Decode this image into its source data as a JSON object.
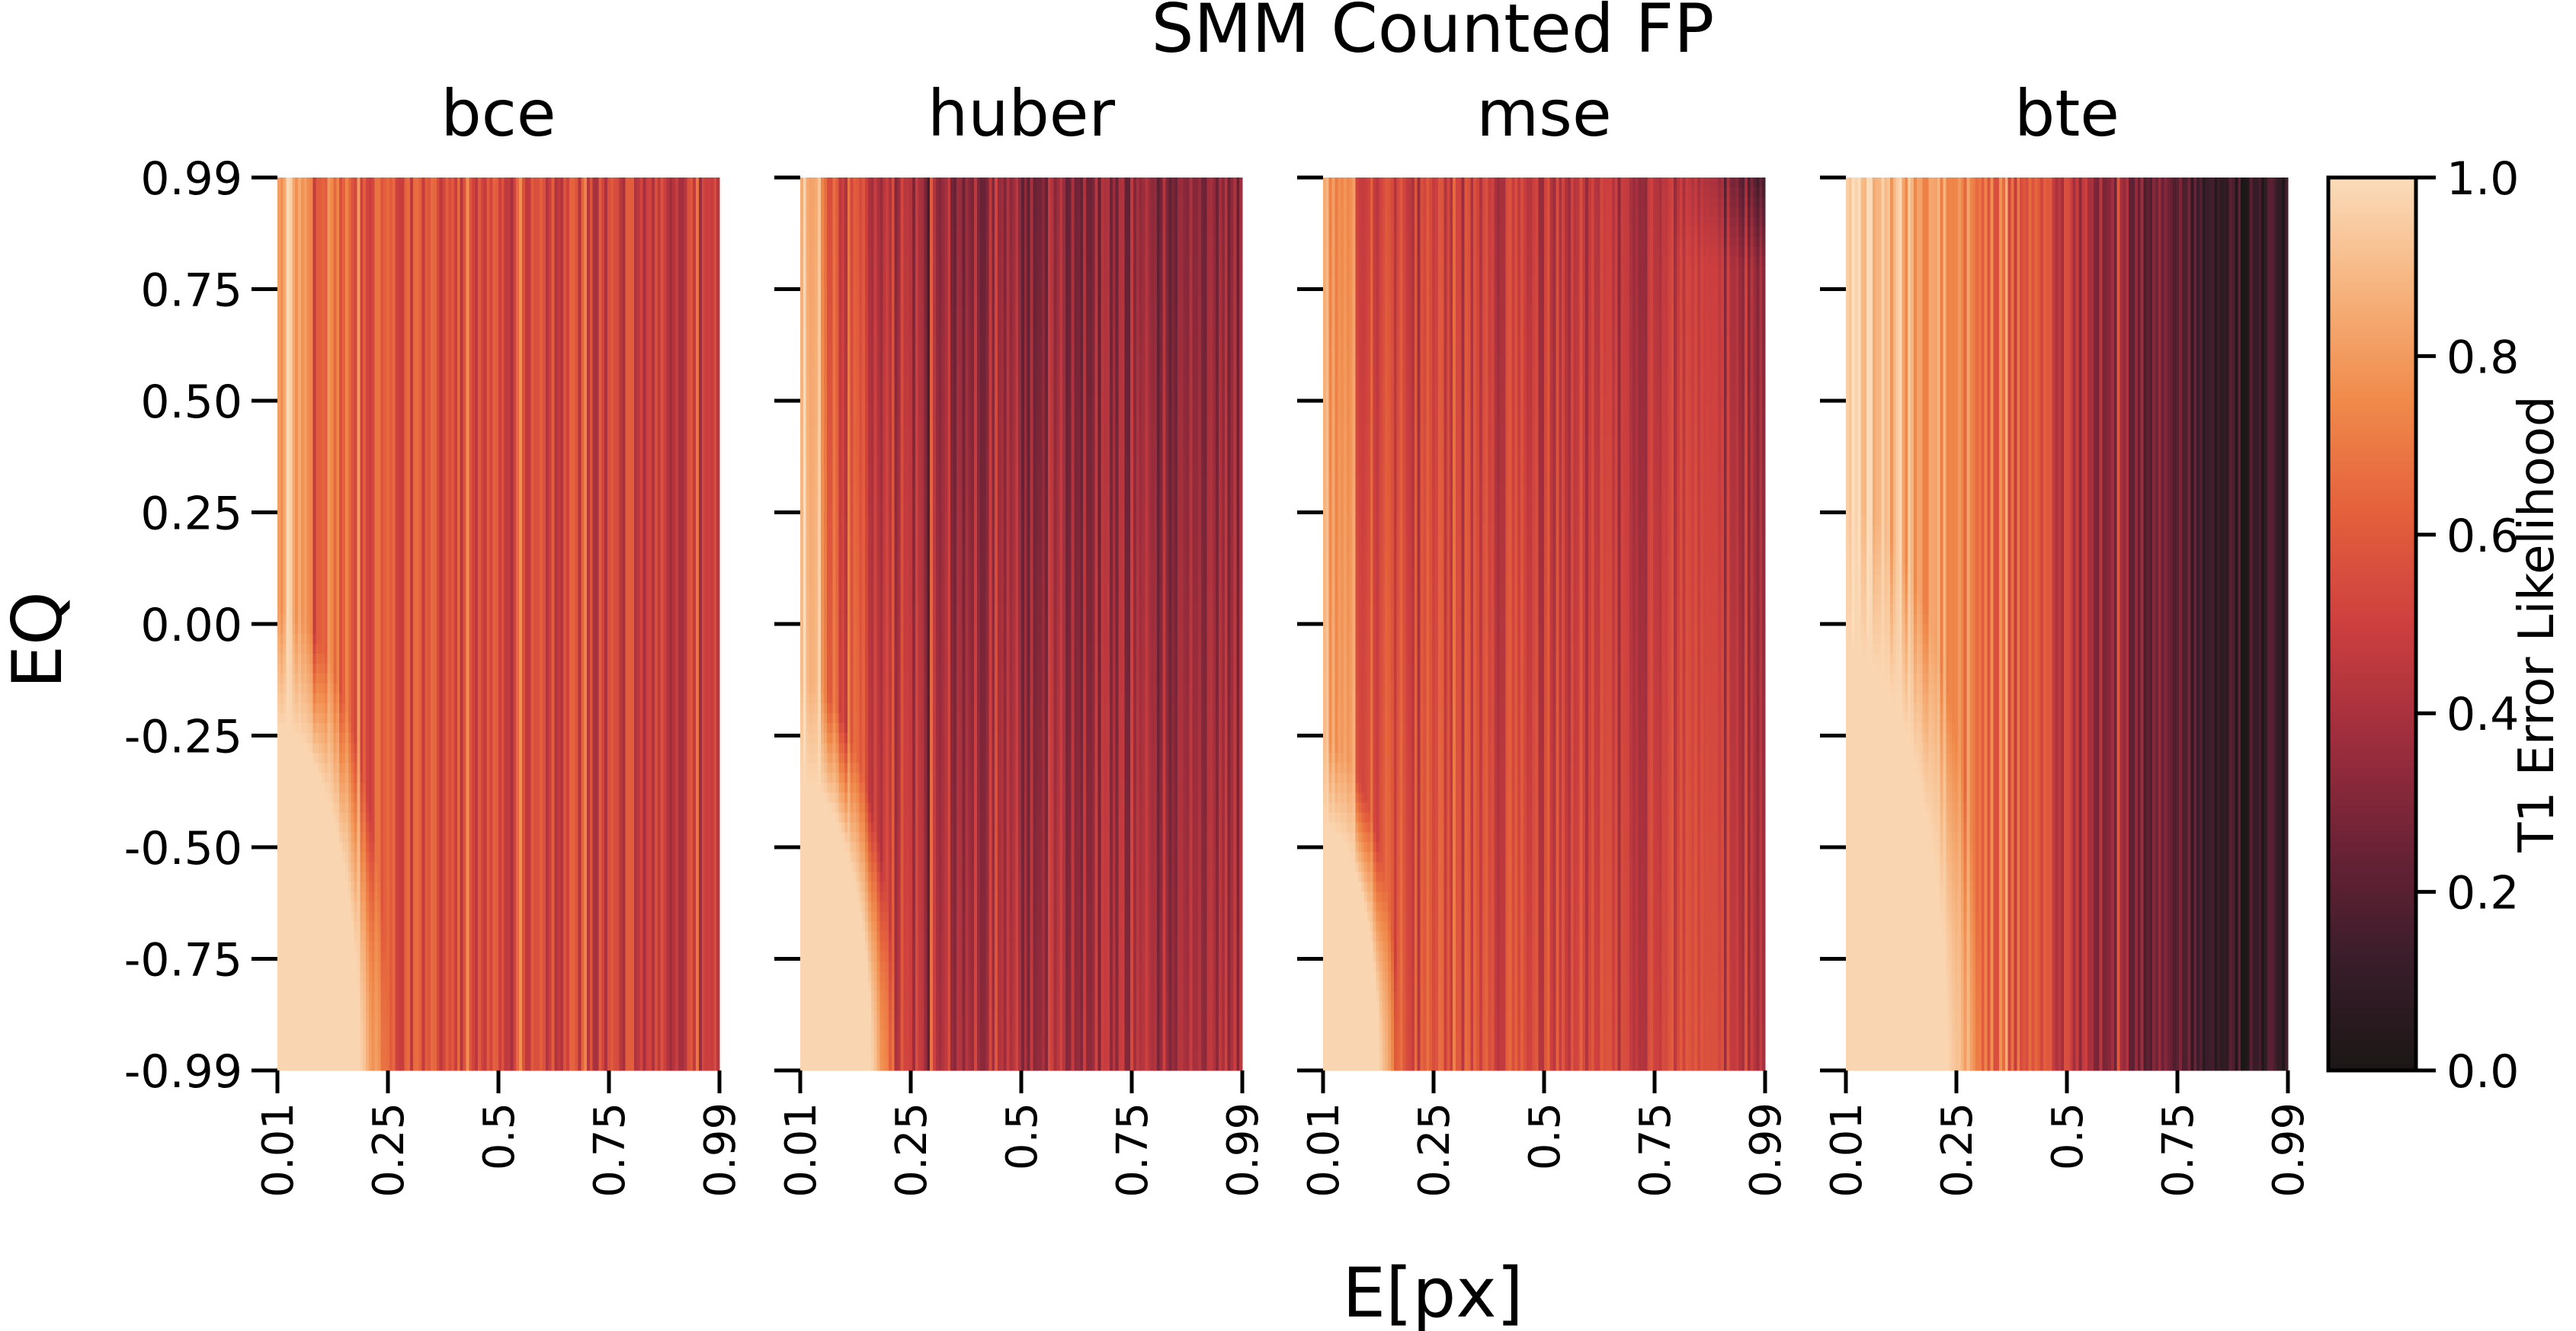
{
  "figure": {
    "title": "SMM Counted FP",
    "xlabel": "E[px]",
    "ylabel": "EQ"
  },
  "colorbar": {
    "label": "T1 Error Likelihood",
    "ticks": [
      "0.0",
      "0.2",
      "0.4",
      "0.6",
      "0.8",
      "1.0"
    ],
    "range": [
      0,
      1
    ],
    "colormap": [
      "#1b1716",
      "#3a1d2a",
      "#6b2236",
      "#a02e3d",
      "#cd3f3f",
      "#e4603c",
      "#f08a4b",
      "#f6b37d",
      "#fbdcbb"
    ]
  },
  "chart_data": [
    {
      "type": "heatmap",
      "title": "bce",
      "xlabel": "E[px]",
      "ylabel": "EQ",
      "x_ticks": [
        "0.01",
        "0.25",
        "0.5",
        "0.75",
        "0.99"
      ],
      "y_ticks": [
        "0.99",
        "0.75",
        "0.50",
        "0.25",
        "0.00",
        "-0.25",
        "-0.50",
        "-0.75",
        "-0.99"
      ],
      "x_range": [
        0.01,
        0.99
      ],
      "y_range": [
        -0.99,
        0.99
      ],
      "value_range": [
        0,
        1
      ],
      "column_means": [
        0.97,
        0.72,
        0.62,
        0.57,
        0.55,
        0.54,
        0.53,
        0.52,
        0.51,
        0.5,
        0.48,
        0.45
      ],
      "low_eq_saturated_region": "near-1.0 values for EQ below about -0.6 and E[px] below about 0.2"
    },
    {
      "type": "heatmap",
      "title": "huber",
      "xlabel": "E[px]",
      "ylabel": "EQ",
      "x_ticks": [
        "0.01",
        "0.25",
        "0.5",
        "0.75",
        "0.99"
      ],
      "y_ticks": [
        "0.99",
        "0.75",
        "0.50",
        "0.25",
        "0.00",
        "-0.25",
        "-0.50",
        "-0.75",
        "-0.99"
      ],
      "x_range": [
        0.01,
        0.99
      ],
      "y_range": [
        -0.99,
        0.99
      ],
      "value_range": [
        0,
        1
      ],
      "column_means": [
        0.95,
        0.58,
        0.47,
        0.42,
        0.4,
        0.39,
        0.38,
        0.37,
        0.36,
        0.36,
        0.37,
        0.38
      ],
      "low_eq_saturated_region": "near-1.0 values for EQ below about -0.7 and E[px] below about 0.18"
    },
    {
      "type": "heatmap",
      "title": "mse",
      "xlabel": "E[px]",
      "ylabel": "EQ",
      "x_ticks": [
        "0.01",
        "0.25",
        "0.5",
        "0.75",
        "0.99"
      ],
      "y_ticks": [
        "0.99",
        "0.75",
        "0.50",
        "0.25",
        "0.00",
        "-0.25",
        "-0.50",
        "-0.75",
        "-0.99"
      ],
      "x_range": [
        0.01,
        0.99
      ],
      "y_range": [
        -0.99,
        0.99
      ],
      "value_range": [
        0,
        1
      ],
      "column_means": [
        0.93,
        0.58,
        0.53,
        0.52,
        0.51,
        0.5,
        0.49,
        0.48,
        0.47,
        0.45,
        0.44,
        0.42
      ],
      "low_eq_saturated_region": "near-1.0 values for EQ below about -0.8 and E[px] below about 0.15"
    },
    {
      "type": "heatmap",
      "title": "bte",
      "xlabel": "E[px]",
      "ylabel": "EQ",
      "x_ticks": [
        "0.01",
        "0.25",
        "0.5",
        "0.75",
        "0.99"
      ],
      "y_ticks": [
        "0.99",
        "0.75",
        "0.50",
        "0.25",
        "0.00",
        "-0.25",
        "-0.50",
        "-0.75",
        "-0.99"
      ],
      "x_range": [
        0.01,
        0.99
      ],
      "y_range": [
        -0.99,
        0.99
      ],
      "value_range": [
        0,
        1
      ],
      "column_means": [
        0.98,
        0.9,
        0.82,
        0.76,
        0.64,
        0.52,
        0.4,
        0.3,
        0.22,
        0.16,
        0.11,
        0.08
      ],
      "low_eq_saturated_region": "near-1.0 values for EQ below about -0.5 and E[px] below about 0.25"
    }
  ]
}
